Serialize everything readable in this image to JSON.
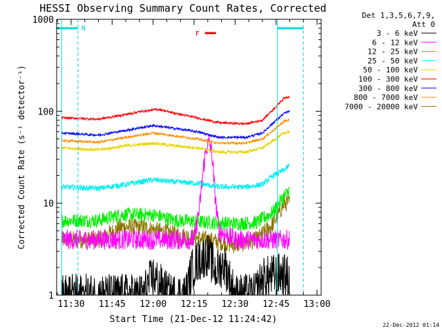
{
  "chart_data": {
    "type": "line",
    "title": "HESSI Observing Summary Count Rates, Corrected",
    "xlabel": "Start Time (21-Dec-12 11:24:42)",
    "ylabel": "Corrected Count Rate (s⁻¹ detector⁻¹)",
    "x_ticks": [
      "11:30",
      "11:45",
      "12:00",
      "12:15",
      "12:30",
      "12:45",
      "13:00"
    ],
    "x_tick_minutes": [
      30,
      45,
      60,
      75,
      90,
      105,
      120
    ],
    "x_range_minutes": [
      24.7,
      121.5
    ],
    "y_scale": "log",
    "ylim": [
      1,
      1000
    ],
    "y_ticks": [
      "1",
      "10",
      "100",
      "1000"
    ],
    "legend_header": [
      "Det 1,3,5,6,7,9,",
      "Att 0"
    ],
    "legend_position": "right",
    "footer_date": "22-Dec-2012 01:14",
    "flag_labels": {
      "night": "N",
      "flare": "F"
    },
    "night_flag_times_minutes": [
      [
        24.7,
        32.5
      ],
      [
        105.5,
        115
      ]
    ],
    "night_boundaries_minutes": [
      26.5,
      32.5,
      105.5,
      115
    ],
    "flare_flag_minutes": [
      79,
      83
    ],
    "data_window_minutes": [
      26.5,
      110
    ],
    "series": [
      {
        "name": "3 - 6 keV",
        "color": "#000000",
        "profile": [
          [
            26.5,
            1
          ],
          [
            56,
            1
          ],
          [
            60,
            1.6
          ],
          [
            66,
            1
          ],
          [
            72,
            1
          ],
          [
            74,
            1.8
          ],
          [
            76,
            2.3
          ],
          [
            80,
            2.8
          ],
          [
            83,
            1.8
          ],
          [
            86,
            2.2
          ],
          [
            90,
            1
          ],
          [
            97,
            1
          ],
          [
            100,
            1.5
          ],
          [
            103,
            1.6
          ],
          [
            107,
            1.7
          ],
          [
            110,
            1.5
          ]
        ]
      },
      {
        "name": "6 - 12 keV",
        "color": "#ff00ff",
        "profile": [
          [
            26.5,
            4
          ],
          [
            40,
            4
          ],
          [
            55,
            4
          ],
          [
            70,
            4
          ],
          [
            75,
            4
          ],
          [
            77,
            9
          ],
          [
            78.5,
            25
          ],
          [
            79.5,
            40
          ],
          [
            80.5,
            45
          ],
          [
            81.5,
            36
          ],
          [
            82.5,
            14
          ],
          [
            84,
            5
          ],
          [
            90,
            4
          ],
          [
            100,
            4
          ],
          [
            110,
            4
          ]
        ]
      },
      {
        "name": "12 - 25 keV",
        "color": "#00ee00",
        "profile": [
          [
            26.5,
            6.5
          ],
          [
            40,
            6.5
          ],
          [
            48,
            7.5
          ],
          [
            60,
            7.5
          ],
          [
            68,
            6.5
          ],
          [
            80,
            6.2
          ],
          [
            90,
            6
          ],
          [
            98,
            6.2
          ],
          [
            104,
            8
          ],
          [
            107,
            11
          ],
          [
            110,
            14
          ]
        ]
      },
      {
        "name": "25 - 50 keV",
        "color": "#00eeee",
        "profile": [
          [
            26.5,
            15
          ],
          [
            40,
            14.5
          ],
          [
            50,
            16
          ],
          [
            60,
            18
          ],
          [
            68,
            17
          ],
          [
            76,
            16.5
          ],
          [
            84,
            15
          ],
          [
            94,
            15
          ],
          [
            100,
            16
          ],
          [
            104,
            20
          ],
          [
            108,
            23
          ],
          [
            110,
            26
          ]
        ]
      },
      {
        "name": "50 - 100 keV",
        "color": "#e6d400",
        "profile": [
          [
            26.5,
            40
          ],
          [
            40,
            38
          ],
          [
            50,
            42
          ],
          [
            60,
            45
          ],
          [
            68,
            42
          ],
          [
            76,
            40
          ],
          [
            84,
            36
          ],
          [
            94,
            36
          ],
          [
            100,
            40
          ],
          [
            104,
            48
          ],
          [
            108,
            58
          ],
          [
            110,
            60
          ]
        ]
      },
      {
        "name": "100 - 300 keV",
        "color": "#ff0000",
        "profile": [
          [
            26.5,
            85
          ],
          [
            40,
            82
          ],
          [
            48,
            90
          ],
          [
            56,
            100
          ],
          [
            62,
            105
          ],
          [
            68,
            95
          ],
          [
            76,
            85
          ],
          [
            84,
            75
          ],
          [
            94,
            73
          ],
          [
            100,
            80
          ],
          [
            104,
            105
          ],
          [
            108,
            140
          ],
          [
            110,
            145
          ]
        ]
      },
      {
        "name": "300 - 800 keV",
        "color": "#0000ff",
        "profile": [
          [
            26.5,
            58
          ],
          [
            40,
            55
          ],
          [
            50,
            62
          ],
          [
            60,
            70
          ],
          [
            68,
            65
          ],
          [
            76,
            60
          ],
          [
            84,
            52
          ],
          [
            94,
            52
          ],
          [
            100,
            58
          ],
          [
            104,
            75
          ],
          [
            108,
            95
          ],
          [
            110,
            100
          ]
        ]
      },
      {
        "name": "800 - 7000 keV",
        "color": "#ff8c00",
        "profile": [
          [
            26.5,
            48
          ],
          [
            40,
            46
          ],
          [
            50,
            52
          ],
          [
            60,
            58
          ],
          [
            68,
            54
          ],
          [
            76,
            50
          ],
          [
            84,
            45
          ],
          [
            94,
            45
          ],
          [
            100,
            50
          ],
          [
            104,
            62
          ],
          [
            108,
            78
          ],
          [
            110,
            80
          ]
        ]
      },
      {
        "name": "7000 - 20000 keV",
        "color": "#8b7500",
        "profile": [
          [
            26.5,
            4
          ],
          [
            40,
            4
          ],
          [
            48,
            5.5
          ],
          [
            56,
            5.5
          ],
          [
            62,
            5
          ],
          [
            70,
            4.5
          ],
          [
            80,
            4
          ],
          [
            90,
            3.5
          ],
          [
            98,
            4
          ],
          [
            104,
            6
          ],
          [
            108,
            10
          ],
          [
            110,
            10
          ]
        ]
      }
    ]
  }
}
